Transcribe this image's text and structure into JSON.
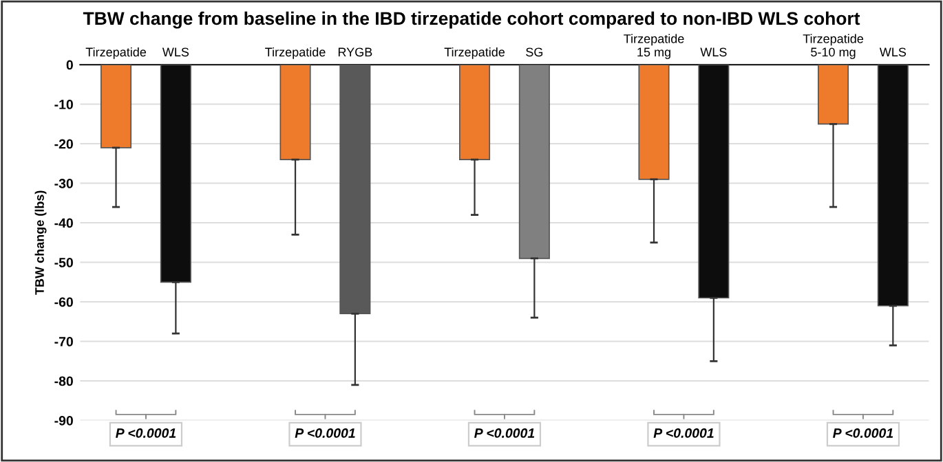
{
  "chart_data": {
    "type": "bar",
    "title": "TBW change from baseline in the IBD tirzepatide cohort compared to non-IBD WLS cohort",
    "ylabel": "TBW change (lbs)",
    "categories": [
      "Tirzepatide",
      "WLS",
      "Tirzepatide",
      "RYGB",
      "Tirzepatide",
      "SG",
      "Tirzepatide\n15 mg",
      "WLS",
      "Tirzepatide\n5-10 mg",
      "WLS"
    ],
    "values": [
      -21,
      -55,
      -24,
      -63,
      -24,
      -49,
      -29,
      -59,
      -15,
      -61
    ],
    "colors": [
      "#ee7a2c",
      "#0d0d0d",
      "#ee7a2c",
      "#595959",
      "#ee7a2c",
      "#808080",
      "#ee7a2c",
      "#0d0d0d",
      "#ee7a2c",
      "#0d0d0d"
    ],
    "errors": [
      [
        -36,
        -21
      ],
      [
        -68,
        -55
      ],
      [
        -43,
        -24
      ],
      [
        -81,
        -63
      ],
      [
        -38,
        -24
      ],
      [
        -64,
        -49
      ],
      [
        -45,
        -29
      ],
      [
        -75,
        -59
      ],
      [
        -36,
        -15
      ],
      [
        -71,
        -61
      ]
    ],
    "ylim": [
      -90,
      0
    ],
    "yticks": [
      0,
      -10,
      -20,
      -30,
      -40,
      -50,
      -60,
      -70,
      -80,
      -90
    ],
    "grid": "y",
    "legend": false,
    "annotations": [
      "P <0.0001",
      "P <0.0001",
      "P <0.0001",
      "P <0.0001",
      "P <0.0001"
    ]
  }
}
